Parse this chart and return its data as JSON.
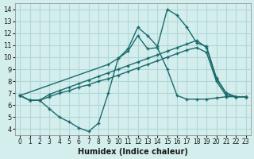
{
  "xlabel": "Humidex (Indice chaleur)",
  "ylabel": "",
  "background_color": "#d4eeee",
  "grid_color": "#b0d8d8",
  "line_color": "#1a6b6b",
  "x_ticks": [
    0,
    1,
    2,
    3,
    4,
    5,
    6,
    7,
    8,
    9,
    10,
    11,
    12,
    13,
    14,
    15,
    16,
    17,
    18,
    19,
    20,
    21,
    22,
    23
  ],
  "y_ticks": [
    4,
    5,
    6,
    7,
    8,
    9,
    10,
    11,
    12,
    13,
    14
  ],
  "xlim": [
    -0.5,
    23.5
  ],
  "ylim": [
    3.5,
    14.5
  ],
  "line1_x": [
    0,
    1,
    2,
    3,
    4,
    5,
    6,
    7,
    8,
    9,
    10,
    11,
    12,
    13,
    14,
    15,
    16,
    17,
    18,
    19,
    20,
    21,
    22,
    23
  ],
  "line1_y": [
    6.8,
    6.4,
    6.4,
    5.7,
    5.0,
    4.6,
    4.1,
    3.8,
    4.5,
    7.0,
    9.9,
    10.5,
    11.8,
    10.7,
    10.8,
    9.0,
    6.8,
    6.5,
    6.5,
    6.5,
    6.6,
    6.7,
    6.7,
    6.7
  ],
  "line2_x": [
    0,
    1,
    2,
    3,
    4,
    5,
    6,
    7,
    8,
    9,
    10,
    11,
    12,
    13,
    14,
    15,
    16,
    17,
    18,
    19,
    20,
    21,
    22,
    23
  ],
  "line2_y": [
    6.8,
    6.4,
    6.4,
    6.9,
    7.2,
    7.5,
    7.8,
    8.1,
    8.4,
    8.7,
    9.0,
    9.3,
    9.6,
    9.9,
    10.2,
    10.5,
    10.8,
    11.1,
    11.4,
    10.8,
    8.2,
    7.0,
    6.7,
    6.7
  ],
  "line3_x": [
    0,
    9,
    10,
    11,
    12,
    13,
    14,
    15,
    16,
    17,
    18,
    19,
    20,
    21,
    22,
    23
  ],
  "line3_y": [
    6.8,
    9.4,
    9.9,
    10.7,
    12.5,
    11.8,
    10.9,
    14.0,
    13.5,
    12.5,
    11.2,
    10.9,
    8.3,
    7.0,
    6.7,
    6.7
  ],
  "line4_x": [
    0,
    1,
    2,
    3,
    4,
    5,
    6,
    7,
    8,
    9,
    10,
    11,
    12,
    13,
    14,
    15,
    16,
    17,
    18,
    19,
    20,
    21,
    22,
    23
  ],
  "line4_y": [
    6.8,
    6.4,
    6.4,
    6.7,
    7.0,
    7.2,
    7.5,
    7.7,
    8.0,
    8.2,
    8.5,
    8.8,
    9.1,
    9.4,
    9.7,
    10.0,
    10.3,
    10.6,
    10.8,
    10.4,
    8.0,
    6.8,
    6.7,
    6.7
  ]
}
